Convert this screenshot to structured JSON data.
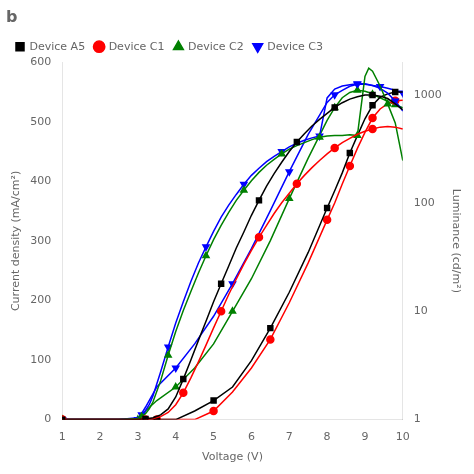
{
  "chart_data": {
    "type": "line",
    "title": "b",
    "xlabel": "Voltage (V)",
    "ylabel": "Current density (mA/cm²)",
    "y2label": "Luminance (cd/m²)",
    "xlim": [
      1,
      10
    ],
    "xticks": [
      1,
      2,
      3,
      4,
      5,
      6,
      7,
      8,
      9,
      10
    ],
    "ylim": [
      0,
      600
    ],
    "yticks": [
      0,
      100,
      200,
      300,
      400,
      500,
      600
    ],
    "y2lim": [
      1,
      2000
    ],
    "y2ticks": [
      1,
      10,
      100,
      1000
    ],
    "log": "y2",
    "grid": false,
    "legend": "upper left",
    "series": [
      {
        "name": "Device A5",
        "color": "black",
        "marker": "square",
        "x": [
          1.0,
          1.5,
          2.0,
          2.5,
          3.0,
          3.2,
          3.4,
          3.6,
          3.8,
          4.0,
          4.2,
          4.4,
          4.6,
          4.8,
          5.0,
          5.2,
          5.4,
          5.6,
          5.8,
          6.0,
          6.2,
          6.4,
          6.6,
          6.8,
          7.0,
          7.2,
          7.4,
          7.6,
          7.8,
          8.0,
          8.2,
          8.4,
          8.6,
          8.8,
          9.0,
          9.2,
          9.4,
          9.6,
          9.8,
          10.0
        ],
        "values": [
          0,
          0,
          0,
          0,
          0,
          1,
          3,
          8,
          18,
          38,
          68,
          100,
          133,
          165,
          198,
          228,
          258,
          288,
          315,
          343,
          368,
          392,
          413,
          432,
          450,
          466,
          480,
          493,
          504,
          514,
          524,
          532,
          538,
          542,
          545,
          545,
          543,
          539,
          530,
          520
        ]
      },
      {
        "name": "Device C1",
        "color": "red",
        "marker": "circle",
        "x": [
          1.0,
          1.5,
          2.0,
          2.5,
          3.0,
          3.2,
          3.4,
          3.6,
          3.8,
          4.0,
          4.2,
          4.4,
          4.6,
          4.8,
          5.0,
          5.2,
          5.4,
          5.6,
          5.8,
          6.0,
          6.2,
          6.4,
          6.6,
          6.8,
          7.0,
          7.2,
          7.4,
          7.6,
          7.8,
          8.0,
          8.2,
          8.4,
          8.6,
          8.8,
          9.0,
          9.2,
          9.4,
          9.6,
          9.8,
          10.0
        ],
        "values": [
          0,
          0,
          0,
          0,
          0,
          0,
          2,
          5,
          12,
          25,
          45,
          70,
          97,
          125,
          154,
          182,
          210,
          236,
          261,
          284,
          306,
          326,
          346,
          364,
          380,
          396,
          410,
          423,
          435,
          446,
          456,
          465,
          472,
          479,
          484,
          488,
          491,
          492,
          491,
          488
        ]
      },
      {
        "name": "Device C2",
        "color": "green",
        "marker": "triangle-up",
        "x": [
          1.0,
          1.5,
          2.0,
          2.5,
          3.0,
          3.1,
          3.2,
          3.3,
          3.4,
          3.6,
          3.8,
          4.0,
          4.2,
          4.4,
          4.6,
          4.8,
          5.0,
          5.2,
          5.4,
          5.6,
          5.8,
          6.0,
          6.2,
          6.4,
          6.6,
          6.8,
          7.0,
          7.2,
          7.4,
          7.6,
          7.8,
          8.0,
          8.2,
          8.4,
          8.6,
          8.8,
          9.0,
          9.1,
          9.2,
          9.4,
          9.6,
          9.8,
          10.0
        ],
        "values": [
          0,
          0,
          0,
          0,
          2,
          5,
          10,
          18,
          30,
          65,
          108,
          148,
          183,
          215,
          246,
          275,
          302,
          326,
          348,
          368,
          385,
          401,
          415,
          427,
          437,
          446,
          454,
          460,
          465,
          470,
          474,
          476,
          477,
          477,
          478,
          477,
          576,
          590,
          585,
          560,
          530,
          498,
          435
        ]
      },
      {
        "name": "Device C3",
        "color": "blue",
        "marker": "triangle-down",
        "x": [
          1.0,
          1.5,
          2.0,
          2.5,
          3.0,
          3.1,
          3.2,
          3.3,
          3.4,
          3.6,
          3.8,
          4.0,
          4.2,
          4.4,
          4.6,
          4.8,
          5.0,
          5.2,
          5.4,
          5.6,
          5.8,
          6.0,
          6.2,
          6.4,
          6.6,
          6.8,
          7.0,
          7.2,
          7.4,
          7.6,
          7.8,
          8.0,
          8.2,
          8.4,
          8.6,
          8.8,
          9.0,
          9.2,
          9.4,
          9.6,
          9.8,
          10.0
        ],
        "values": [
          0,
          0,
          0,
          0,
          3,
          8,
          15,
          25,
          40,
          80,
          122,
          162,
          198,
          232,
          263,
          290,
          316,
          340,
          360,
          378,
          395,
          410,
          422,
          433,
          442,
          450,
          458,
          464,
          469,
          473,
          476,
          540,
          555,
          560,
          562,
          564,
          564,
          561,
          556,
          548,
          535,
          518
        ]
      },
      {
        "color": "black",
        "marker": "square",
        "axis": "y2",
        "x": [
          1.0,
          2.0,
          3.0,
          3.5,
          4.0,
          4.5,
          5.0,
          5.5,
          6.0,
          6.5,
          7.0,
          7.5,
          8.0,
          8.2,
          8.4,
          8.6,
          8.8,
          9.0,
          9.2,
          9.4,
          9.6,
          9.8,
          10.0
        ],
        "values": [
          1,
          1,
          1,
          1,
          1,
          1.2,
          1.5,
          2,
          3.5,
          7,
          15,
          35,
          90,
          130,
          190,
          290,
          420,
          600,
          800,
          950,
          1020,
          1060,
          1060
        ]
      },
      {
        "color": "red",
        "marker": "circle",
        "axis": "y2",
        "x": [
          1.0,
          2.0,
          3.0,
          3.5,
          4.0,
          4.5,
          5.0,
          5.5,
          6.0,
          6.5,
          7.0,
          7.5,
          8.0,
          8.2,
          8.4,
          8.6,
          8.8,
          9.0,
          9.2,
          9.4,
          9.6,
          9.8,
          10.0
        ],
        "values": [
          1,
          1,
          1,
          1,
          1,
          1,
          1.2,
          1.8,
          3,
          5.5,
          12,
          28,
          70,
          100,
          150,
          220,
          320,
          450,
          610,
          740,
          830,
          880,
          890
        ]
      },
      {
        "color": "green",
        "marker": "triangle-up",
        "axis": "y2",
        "x": [
          1.0,
          2.0,
          2.5,
          3.0,
          3.2,
          3.5,
          4.0,
          4.5,
          5.0,
          5.5,
          6.0,
          6.5,
          7.0,
          7.5,
          8.0,
          8.2,
          8.4,
          8.6,
          8.8,
          9.0,
          9.1,
          9.2,
          9.4,
          9.6,
          9.8,
          10.0
        ],
        "values": [
          1,
          1,
          1,
          1,
          1.2,
          1.5,
          2,
          3,
          5,
          10,
          20,
          45,
          110,
          260,
          580,
          760,
          940,
          1050,
          1100,
          1080,
          1050,
          1010,
          940,
          870,
          810,
          760
        ]
      },
      {
        "color": "blue",
        "marker": "triangle-down",
        "axis": "y2",
        "x": [
          1.0,
          2.0,
          2.5,
          3.0,
          3.2,
          3.5,
          4.0,
          4.5,
          5.0,
          5.5,
          6.0,
          6.5,
          7.0,
          7.5,
          8.0,
          8.2,
          8.4,
          8.6,
          8.8,
          9.0,
          9.2,
          9.4,
          9.6,
          9.8,
          10.0
        ],
        "values": [
          1,
          1,
          1,
          1,
          1.3,
          2,
          3,
          5,
          9,
          18,
          38,
          85,
          195,
          430,
          850,
          1000,
          1100,
          1200,
          1250,
          1250,
          1220,
          1190,
          1150,
          1100,
          1040
        ]
      }
    ]
  }
}
